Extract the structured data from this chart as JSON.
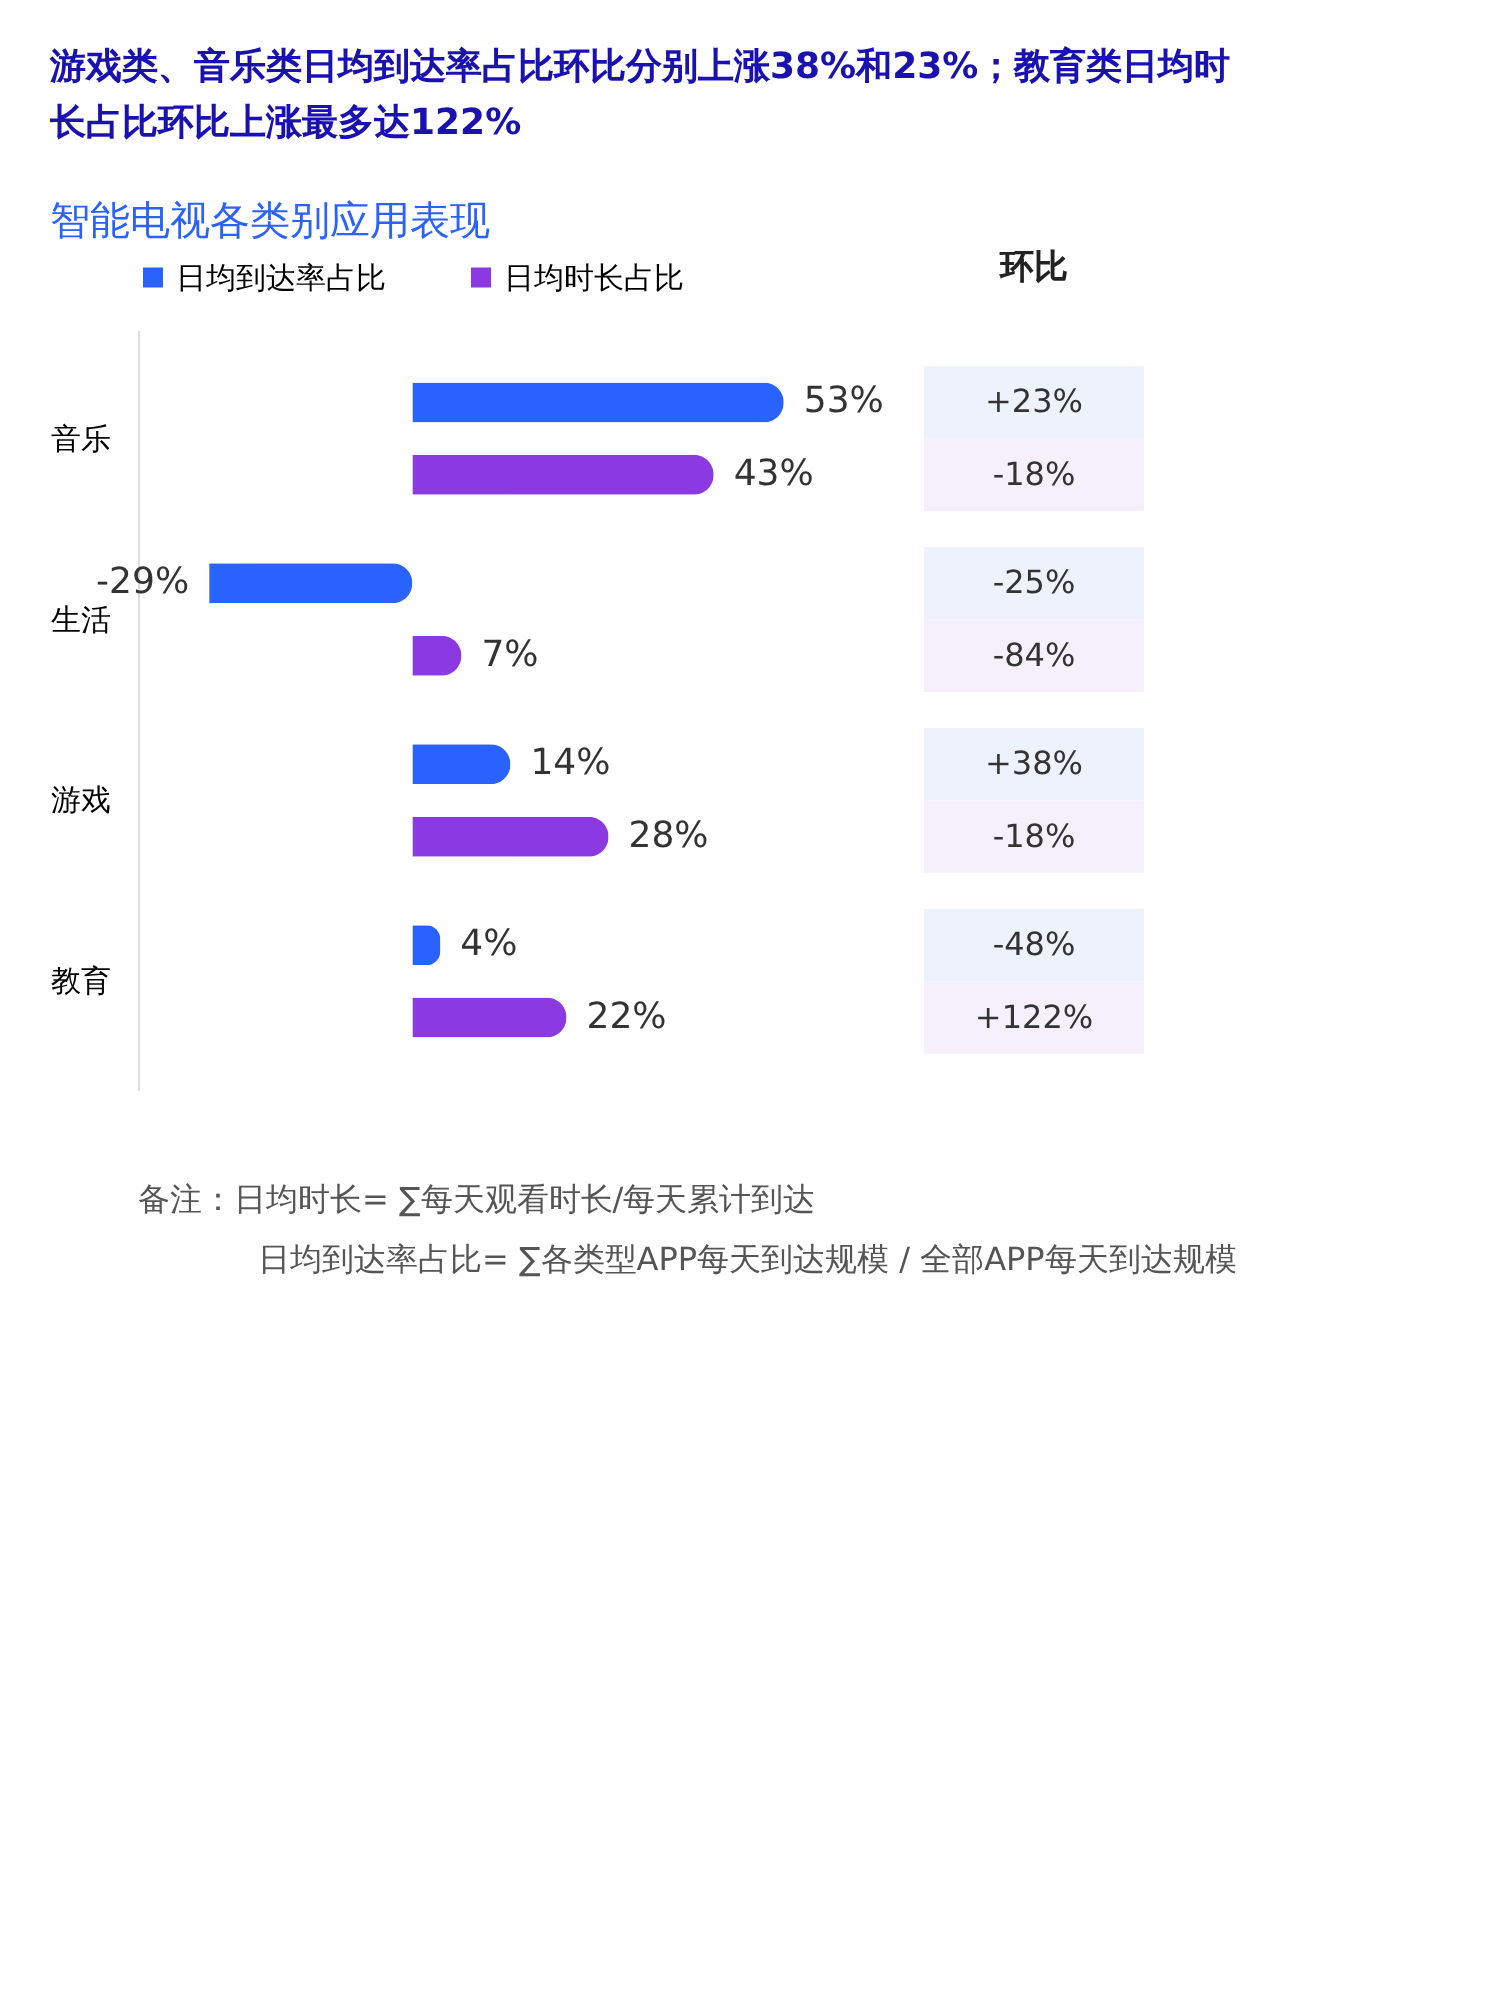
{
  "chart_data": {
    "type": "bar",
    "orientation": "horizontal",
    "title": "游戏类、音乐类日均到达率占比环比分别上涨38%和23%；教育类日均时长占比环比上涨最多达122%",
    "subtitle": "智能电视各类别应用表现",
    "categories": [
      "音乐",
      "生活",
      "游戏",
      "教育"
    ],
    "series": [
      {
        "name": "日均到达率占比",
        "color": "#2962ff",
        "values": [
          53,
          -29,
          14,
          4
        ],
        "value_labels": [
          "53%",
          "-29%",
          "14%",
          "4%"
        ]
      },
      {
        "name": "日均时长占比",
        "color": "#8a3ae0",
        "values": [
          43,
          7,
          28,
          22
        ],
        "value_labels": [
          "43%",
          "7%",
          "28%",
          "22%"
        ]
      }
    ],
    "legend": "top",
    "annotations": [
      "环比",
      "+23%",
      "-18%",
      "-25%",
      "-84%",
      "+38%",
      "-18%",
      "-48%",
      "+122%",
      "备注：日均时长= ∑每天观看时长/每天累计到达",
      "日均到达率占比= ∑各类型APP每天到达规模 / 全部APP每天到达规模"
    ]
  }
}
